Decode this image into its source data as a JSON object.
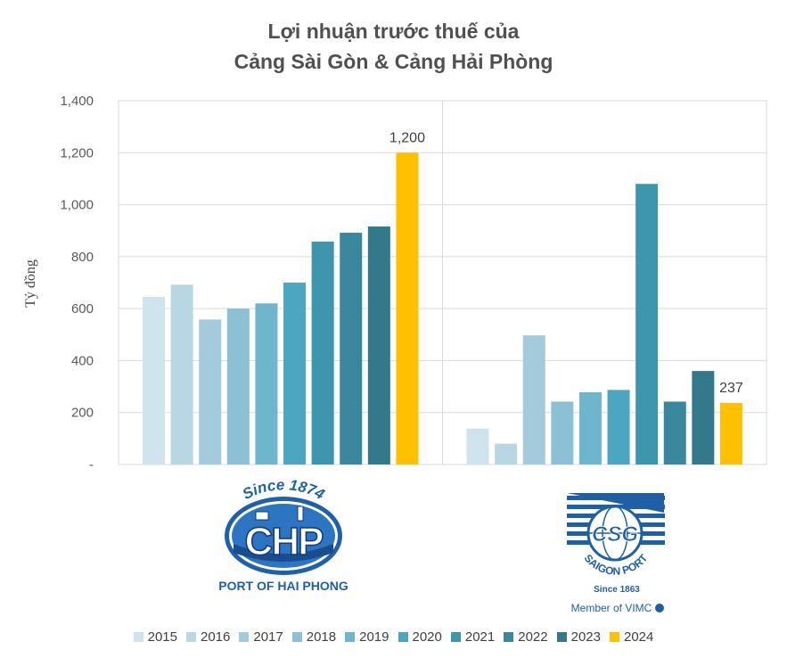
{
  "title_lines": [
    "Lợi nhuận trước thuế của",
    "Cảng Sài Gòn & Cảng Hải Phòng"
  ],
  "colors": {
    "years": [
      "#cfe3ec",
      "#b9d7e3",
      "#a3cbdb",
      "#8cc0d4",
      "#6fb6cc",
      "#4aa6c1",
      "#3d96ae",
      "#39879c",
      "#33798b",
      "#ffc000"
    ],
    "grid": "#d9d9d9",
    "axis_text": "#595959"
  },
  "logos": {
    "hai_phong": {
      "since": "Since 1874",
      "mark": "CHP",
      "caption": "PORT OF HAI PHONG"
    },
    "saigon": {
      "mark": "CSG",
      "ring": "SAIGON PORT",
      "since": "Since 1863",
      "member": "Member of VIMC"
    }
  },
  "chart_data": {
    "type": "bar",
    "title": "Lợi nhuận trước thuế của Cảng Sài Gòn & Cảng Hải Phòng",
    "ylabel": "Tỷ đồng",
    "ylim": [
      0,
      1400
    ],
    "yticks": [
      "-",
      "200",
      "400",
      "600",
      "800",
      "1,000",
      "1,200",
      "1,400"
    ],
    "yticks_values": [
      0,
      200,
      400,
      600,
      800,
      1000,
      1200,
      1400
    ],
    "grid": true,
    "legend_position": "bottom",
    "series_names": [
      "2015",
      "2016",
      "2017",
      "2018",
      "2019",
      "2020",
      "2021",
      "2022",
      "2023",
      "2024"
    ],
    "groups": [
      {
        "name": "Cảng Hải Phòng",
        "values": [
          645,
          692,
          558,
          600,
          620,
          700,
          858,
          892,
          916,
          1200
        ],
        "data_labels": {
          "9": "1,200"
        }
      },
      {
        "name": "Cảng Sài Gòn",
        "values": [
          138,
          80,
          497,
          242,
          278,
          287,
          1080,
          242,
          360,
          237
        ],
        "data_labels": {
          "9": "237"
        }
      }
    ]
  }
}
